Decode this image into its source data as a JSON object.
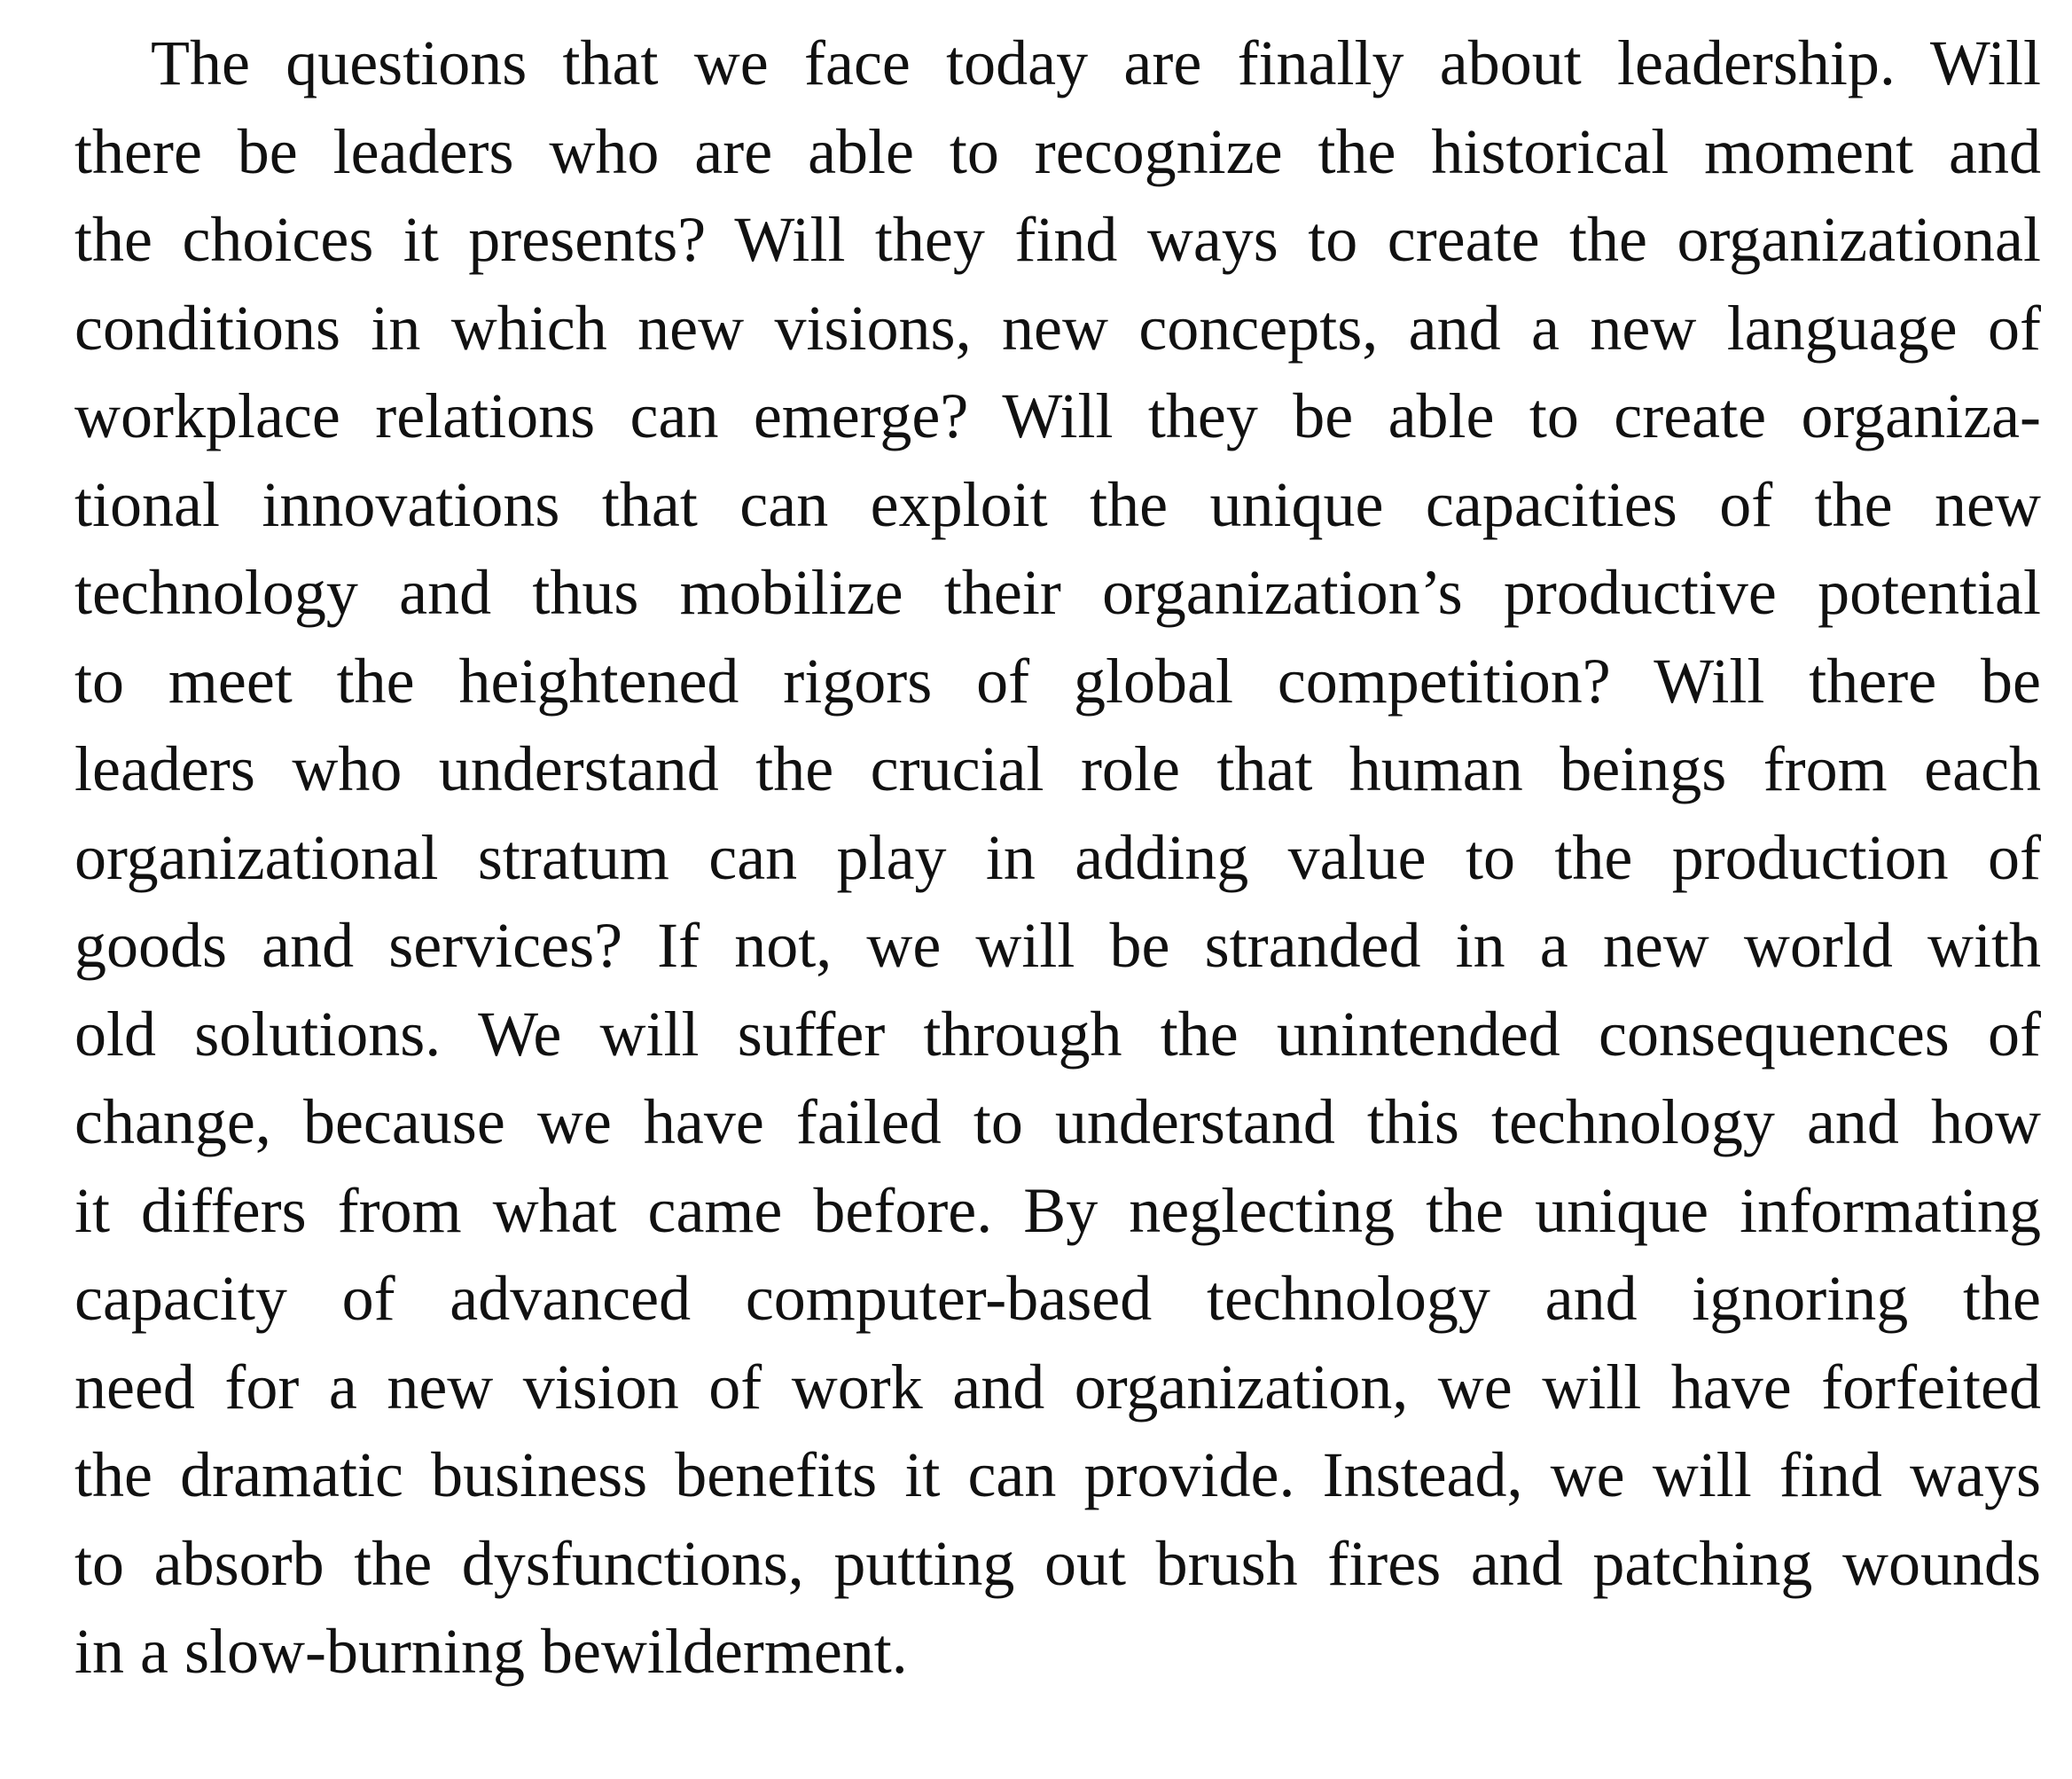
{
  "paragraph": {
    "lines": [
      "The questions that we face today are finally about leadership. Will",
      "there be leaders who are able to recognize the historical moment and",
      "the choices it presents? Will they find ways to create the organizational",
      "conditions in which new visions, new concepts, and a new language of",
      "workplace relations can emerge? Will they be able to create organiza-",
      "tional innovations that can exploit the unique capacities of the new",
      "technology and thus mobilize their organization’s productive potential",
      "to meet the heightened rigors of global competition? Will there be",
      "leaders who understand the crucial role that human beings from each",
      "organizational stratum can play in adding value to the production of",
      "goods and services? If not, we will be stranded in a new world with",
      "old solutions. We will suffer through the unintended consequences of",
      "change, because we have failed to understand this technology and how",
      "it differs from what came before. By neglecting the unique informating",
      "capacity of advanced computer-based technology and ignoring the",
      "need for a new vision of work and organization, we will have forfeited",
      "the dramatic business benefits it can provide. Instead, we will find ways",
      "to absorb the dysfunctions, putting out brush fires and patching wounds",
      "in a slow-burning bewilderment."
    ]
  }
}
